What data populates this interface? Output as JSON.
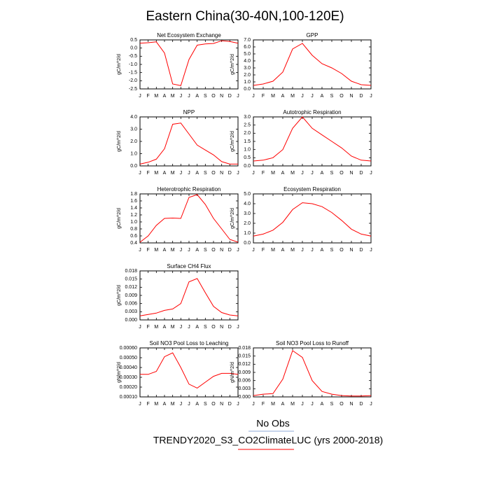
{
  "title": "Eastern China(30-40N,100-120E)",
  "legend": [
    {
      "name": "No Obs",
      "color": "#8fa8d8"
    },
    {
      "name": "TRENDY2020_S3_CO2ClimateLUC (yrs 2000-2018)",
      "color": "#ff0000"
    }
  ],
  "chart_data": [
    {
      "type": "line",
      "title": "Net Ecosystem Exchange",
      "ylabel": "gC/m^2/d",
      "color": "#ff0000",
      "categories": [
        "J",
        "F",
        "M",
        "A",
        "M",
        "J",
        "J",
        "A",
        "S",
        "O",
        "N",
        "D",
        "J"
      ],
      "values": [
        0.3,
        0.33,
        0.38,
        -0.3,
        -2.2,
        -2.3,
        -0.7,
        0.18,
        0.25,
        0.28,
        0.45,
        0.4,
        0.3
      ],
      "ylim": [
        -2.5,
        0.5
      ],
      "yticks": [
        -2.5,
        {
          "value": -2,
          "label": "-2.0"
        },
        -1.5,
        {
          "value": -1,
          "label": "-1.0"
        },
        -0.5,
        {
          "value": 0,
          "label": "0.0"
        },
        0.5
      ]
    },
    {
      "type": "line",
      "title": "GPP",
      "ylabel": "gC/m^2/d",
      "color": "#ff0000",
      "categories": [
        "J",
        "F",
        "M",
        "A",
        "M",
        "J",
        "J",
        "A",
        "S",
        "O",
        "N",
        "D",
        "J"
      ],
      "values": [
        0.5,
        0.7,
        1.1,
        2.4,
        5.7,
        6.5,
        4.8,
        3.6,
        3.0,
        2.2,
        1.1,
        0.6,
        0.5
      ],
      "ylim": [
        0,
        7
      ],
      "yticks": [
        {
          "value": 0,
          "label": "0.0"
        },
        {
          "value": 1,
          "label": "1.0"
        },
        {
          "value": 2,
          "label": "2.0"
        },
        {
          "value": 3,
          "label": "3.0"
        },
        {
          "value": 4,
          "label": "4.0"
        },
        {
          "value": 5,
          "label": "5.0"
        },
        {
          "value": 6,
          "label": "6.0"
        },
        {
          "value": 7,
          "label": "7.0"
        }
      ]
    },
    {
      "type": "line",
      "title": "NPP",
      "ylabel": "gC/m^2/d",
      "color": "#ff0000",
      "categories": [
        "J",
        "F",
        "M",
        "A",
        "M",
        "J",
        "J",
        "A",
        "S",
        "O",
        "N",
        "D",
        "J"
      ],
      "values": [
        0.15,
        0.3,
        0.55,
        1.4,
        3.4,
        3.5,
        2.6,
        1.7,
        1.3,
        0.9,
        0.35,
        0.15,
        0.15
      ],
      "ylim": [
        0,
        4
      ],
      "yticks": [
        {
          "value": 0,
          "label": "0.0"
        },
        {
          "value": 1,
          "label": "1.0"
        },
        {
          "value": 2,
          "label": "2.0"
        },
        {
          "value": 3,
          "label": "3.0"
        },
        {
          "value": 4,
          "label": "4.0"
        }
      ]
    },
    {
      "type": "line",
      "title": "Autotrophic Respiration",
      "ylabel": "gC/m^2/d",
      "color": "#ff0000",
      "categories": [
        "J",
        "F",
        "M",
        "A",
        "M",
        "J",
        "J",
        "A",
        "S",
        "O",
        "N",
        "D",
        "J"
      ],
      "values": [
        0.3,
        0.35,
        0.5,
        1.0,
        2.3,
        3.0,
        2.3,
        1.9,
        1.5,
        1.1,
        0.6,
        0.35,
        0.3
      ],
      "ylim": [
        0,
        3
      ],
      "yticks": [
        {
          "value": 0,
          "label": "0.0"
        },
        0.5,
        {
          "value": 1,
          "label": "1.0"
        },
        1.5,
        {
          "value": 2,
          "label": "2.0"
        },
        2.5,
        {
          "value": 3,
          "label": "3.0"
        }
      ]
    },
    {
      "type": "line",
      "title": "Heterotrophic Respiration",
      "ylabel": "gC/m^2/d",
      "color": "#ff0000",
      "categories": [
        "J",
        "F",
        "M",
        "A",
        "M",
        "J",
        "J",
        "A",
        "S",
        "O",
        "N",
        "D",
        "J"
      ],
      "values": [
        0.42,
        0.6,
        0.9,
        1.1,
        1.11,
        1.1,
        1.7,
        1.78,
        1.5,
        1.1,
        0.8,
        0.5,
        0.42
      ],
      "ylim": [
        0.4,
        1.8
      ],
      "yticks": [
        0.4,
        0.6,
        0.8,
        {
          "value": 1,
          "label": "1.0"
        },
        1.2,
        1.4,
        1.6,
        1.8
      ]
    },
    {
      "type": "line",
      "title": "Ecosystem Respiration",
      "ylabel": "gC/m^2/d",
      "color": "#ff0000",
      "categories": [
        "J",
        "F",
        "M",
        "A",
        "M",
        "J",
        "J",
        "A",
        "S",
        "O",
        "N",
        "D",
        "J"
      ],
      "values": [
        0.7,
        0.9,
        1.3,
        2.1,
        3.4,
        4.1,
        4.0,
        3.7,
        3.1,
        2.3,
        1.4,
        0.9,
        0.7
      ],
      "ylim": [
        0,
        5
      ],
      "yticks": [
        {
          "value": 0,
          "label": "0.0"
        },
        {
          "value": 1,
          "label": "1.0"
        },
        {
          "value": 2,
          "label": "2.0"
        },
        {
          "value": 3,
          "label": "3.0"
        },
        {
          "value": 4,
          "label": "4.0"
        },
        {
          "value": 5,
          "label": "5.0"
        }
      ]
    },
    {
      "type": "line",
      "title": "Surface CH4 Flux",
      "ylabel": "gC/m^2/d",
      "color": "#ff0000",
      "categories": [
        "J",
        "F",
        "M",
        "A",
        "M",
        "J",
        "J",
        "A",
        "S",
        "O",
        "N",
        "D",
        "J"
      ],
      "values": [
        0.0015,
        0.002,
        0.0025,
        0.0035,
        0.004,
        0.006,
        0.014,
        0.0152,
        0.01,
        0.005,
        0.0027,
        0.0018,
        0.0015
      ],
      "ylim": [
        0,
        0.018
      ],
      "yticks": [
        {
          "value": 0,
          "label": "0.000"
        },
        0.003,
        0.006,
        0.009,
        0.012,
        0.015,
        0.018
      ]
    },
    {
      "type": "line",
      "title": "Soil NO3 Pool Loss to Leaching",
      "ylabel": "gN/m^2/d",
      "color": "#ff0000",
      "categories": [
        "J",
        "F",
        "M",
        "A",
        "M",
        "J",
        "J",
        "A",
        "S",
        "O",
        "N",
        "D",
        "J"
      ],
      "values": [
        0.00033,
        0.00033,
        0.00036,
        0.00051,
        0.00055,
        0.0004,
        0.00023,
        0.00019,
        0.00025,
        0.00031,
        0.00034,
        0.00034,
        0.00033
      ],
      "ylim": [
        0.0001,
        0.0006
      ],
      "yticks": [
        {
          "value": 0.0001,
          "label": "0.00010"
        },
        {
          "value": 0.0002,
          "label": "0.00020"
        },
        {
          "value": 0.0003,
          "label": "0.00030"
        },
        {
          "value": 0.0004,
          "label": "0.00040"
        },
        {
          "value": 0.0005,
          "label": "0.00050"
        },
        {
          "value": 0.0006,
          "label": "0.00060"
        }
      ]
    },
    {
      "type": "line",
      "title": "Soil NO3 Pool Loss to Runoff",
      "ylabel": "gN/m^2/d",
      "color": "#ff0000",
      "categories": [
        "J",
        "F",
        "M",
        "A",
        "M",
        "J",
        "J",
        "A",
        "S",
        "O",
        "N",
        "D",
        "J"
      ],
      "values": [
        0.0005,
        0.001,
        0.0012,
        0.0065,
        0.017,
        0.0145,
        0.006,
        0.002,
        0.001,
        0.0005,
        0.0003,
        0.0003,
        0.0005
      ],
      "ylim": [
        0,
        0.018
      ],
      "yticks": [
        {
          "value": 0,
          "label": "0.000"
        },
        0.003,
        0.006,
        0.009,
        0.012,
        0.015,
        0.018
      ]
    }
  ]
}
